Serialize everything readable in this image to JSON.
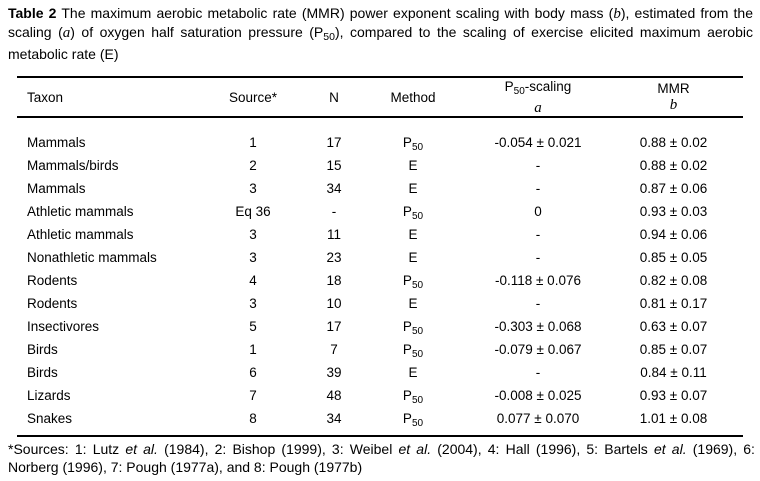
{
  "caption": {
    "segments": [
      {
        "text": "Table 2",
        "style": "bold"
      },
      {
        "text": " The maximum aerobic metabolic rate (MMR) power exponent scaling with body mass ("
      },
      {
        "text": "b",
        "style": "italic-serif"
      },
      {
        "text": "), estimated from the scaling ("
      },
      {
        "text": "a",
        "style": "italic-serif"
      },
      {
        "text": ") of oxygen half saturation pressure (P"
      },
      {
        "text": "50",
        "style": "sub"
      },
      {
        "text": "), compared to the scaling of exercise elicited maximum aerobic metabolic rate (E)"
      }
    ]
  },
  "table": {
    "headers": {
      "taxon": "Taxon",
      "source": "Source*",
      "n": "N",
      "method": "Method",
      "p50_base": "P",
      "p50_sub": "50",
      "p50_rest": "-scaling",
      "p50_symbol": "a",
      "mmr": "MMR",
      "mmr_symbol": "b"
    },
    "rows": [
      {
        "taxon": "Mammals",
        "source": "1",
        "n": "17",
        "method_base": "P",
        "method_sub": "50",
        "a": "-0.054 ± 0.021",
        "b": "0.88 ± 0.02"
      },
      {
        "taxon": "Mammals/birds",
        "source": "2",
        "n": "15",
        "method_base": "E",
        "method_sub": "",
        "a": "-",
        "b": "0.88 ± 0.02"
      },
      {
        "taxon": "Mammals",
        "source": "3",
        "n": "34",
        "method_base": "E",
        "method_sub": "",
        "a": "-",
        "b": "0.87 ± 0.06"
      },
      {
        "taxon": "Athletic mammals",
        "source": "Eq 36",
        "n": "-",
        "method_base": "P",
        "method_sub": "50",
        "a": "0",
        "b": "0.93 ± 0.03"
      },
      {
        "taxon": "Athletic mammals",
        "source": "3",
        "n": "11",
        "method_base": "E",
        "method_sub": "",
        "a": "-",
        "b": "0.94 ± 0.06"
      },
      {
        "taxon": "Nonathletic mammals",
        "source": "3",
        "n": "23",
        "method_base": "E",
        "method_sub": "",
        "a": "-",
        "b": "0.85 ± 0.05"
      },
      {
        "taxon": "Rodents",
        "source": "4",
        "n": "18",
        "method_base": "P",
        "method_sub": "50",
        "a": "-0.118 ± 0.076",
        "b": "0.82 ± 0.08"
      },
      {
        "taxon": "Rodents",
        "source": "3",
        "n": "10",
        "method_base": "E",
        "method_sub": "",
        "a": "-",
        "b": "0.81 ± 0.17"
      },
      {
        "taxon": "Insectivores",
        "source": "5",
        "n": "17",
        "method_base": "P",
        "method_sub": "50",
        "a": "-0.303 ± 0.068",
        "b": "0.63 ± 0.07"
      },
      {
        "taxon": "Birds",
        "source": "1",
        "n": "7",
        "method_base": "P",
        "method_sub": "50",
        "a": "-0.079 ± 0.067",
        "b": "0.85 ± 0.07"
      },
      {
        "taxon": "Birds",
        "source": "6",
        "n": "39",
        "method_base": "E",
        "method_sub": "",
        "a": "-",
        "b": "0.84 ± 0.11"
      },
      {
        "taxon": "Lizards",
        "source": "7",
        "n": "48",
        "method_base": "P",
        "method_sub": "50",
        "a": "-0.008 ± 0.025",
        "b": "0.93 ± 0.07"
      },
      {
        "taxon": "Snakes",
        "source": "8",
        "n": "34",
        "method_base": "P",
        "method_sub": "50",
        "a": "0.077 ± 0.070",
        "b": "1.01 ± 0.08"
      }
    ]
  },
  "footnote": {
    "segments": [
      {
        "text": "*Sources: 1: Lutz "
      },
      {
        "text": "et al.",
        "style": "italic"
      },
      {
        "text": " (1984), 2: Bishop (1999), 3: Weibel "
      },
      {
        "text": "et al.",
        "style": "italic"
      },
      {
        "text": " (2004), 4: Hall (1996), 5: Bartels "
      },
      {
        "text": "et al.",
        "style": "italic"
      },
      {
        "text": " (1969), 6: Norberg (1996), 7: Pough (1977a), and 8: Pough (1977b)"
      }
    ]
  },
  "colors": {
    "background": "#ffffff",
    "text": "#000000",
    "rule": "#000000"
  }
}
